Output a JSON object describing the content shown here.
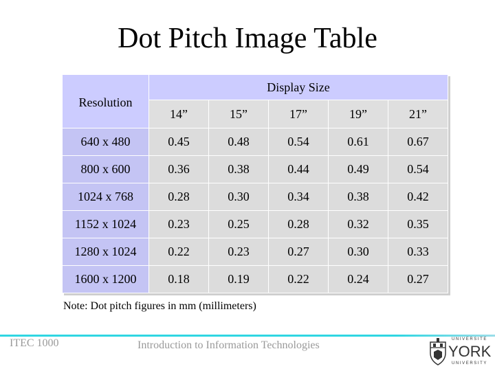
{
  "slide": {
    "title": "Dot Pitch Image Table",
    "note": "Note: Dot pitch figures in mm (millimeters)"
  },
  "table": {
    "resolution_header": "Resolution",
    "display_size_header": "Display Size",
    "sizes": [
      "14”",
      "15”",
      "17”",
      "19”",
      "21”"
    ],
    "rows": [
      {
        "resolution": "640 x 480",
        "values": [
          "0.45",
          "0.48",
          "0.54",
          "0.61",
          "0.67"
        ]
      },
      {
        "resolution": "800 x 600",
        "values": [
          "0.36",
          "0.38",
          "0.44",
          "0.49",
          "0.54"
        ]
      },
      {
        "resolution": "1024 x 768",
        "values": [
          "0.28",
          "0.30",
          "0.34",
          "0.38",
          "0.42"
        ]
      },
      {
        "resolution": "1152 x 1024",
        "values": [
          "0.23",
          "0.25",
          "0.28",
          "0.32",
          "0.35"
        ]
      },
      {
        "resolution": "1280 x 1024",
        "values": [
          "0.22",
          "0.23",
          "0.27",
          "0.30",
          "0.33"
        ]
      },
      {
        "resolution": "1600 x 1200",
        "values": [
          "0.18",
          "0.19",
          "0.22",
          "0.24",
          "0.27"
        ]
      }
    ]
  },
  "footer": {
    "course": "ITEC 1000",
    "course_title": "Introduction to Information Technologies",
    "logo": {
      "top_text": "UNIVERSITE",
      "name": "YORK",
      "bottom_text": "UNIVERSITY",
      "icon": "crest-icon"
    }
  },
  "colors": {
    "header_fill": "#ccccff",
    "resolution_fill": "#c4c4f4",
    "value_fill": "#dcdcdc",
    "footer_rule": "#2fd6e2",
    "footer_text": "#999999"
  }
}
